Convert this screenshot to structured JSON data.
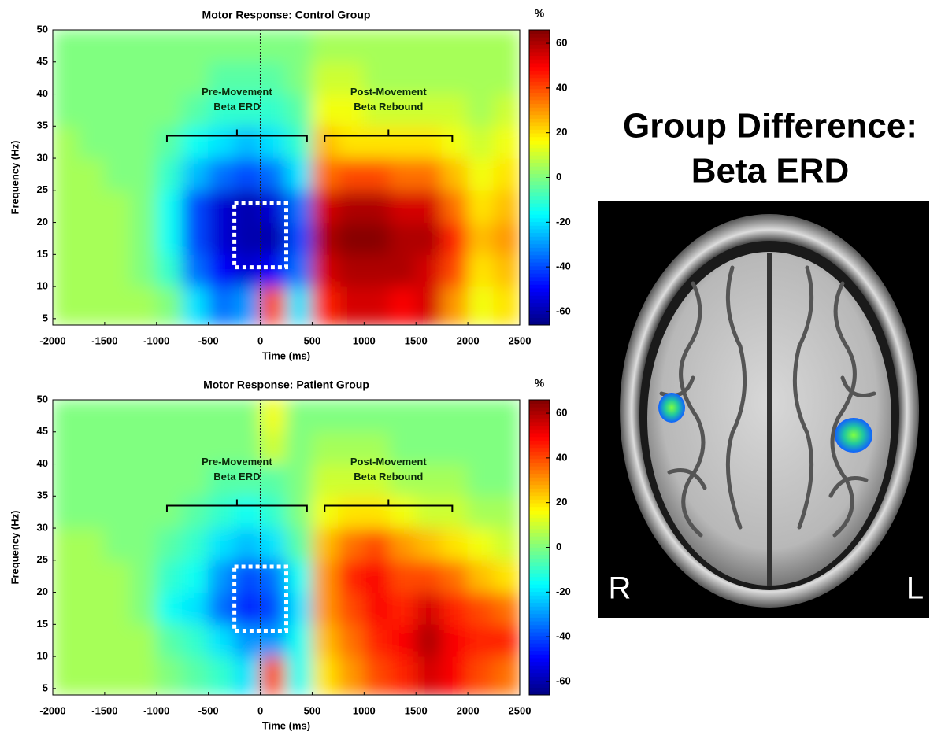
{
  "chart_data": [
    {
      "type": "heatmap",
      "title": "Motor Response: Control Group",
      "x_label": "Time (ms)",
      "y_label": "Frequency (Hz)",
      "colormap": "jet",
      "colorbar_label": "%",
      "clim": [
        -66,
        66
      ],
      "colorbar_ticks": [
        -60,
        -40,
        -20,
        0,
        20,
        40,
        60
      ],
      "xlim": [
        -2000,
        2500
      ],
      "xticks": [
        -2000,
        -1500,
        -1000,
        -500,
        0,
        500,
        1000,
        1500,
        2000,
        2500
      ],
      "ylim": [
        4,
        50
      ],
      "yticks": [
        5,
        10,
        15,
        20,
        25,
        30,
        35,
        40,
        45,
        50
      ],
      "x": [
        -2000,
        -1750,
        -1500,
        -1250,
        -1000,
        -750,
        -500,
        -250,
        0,
        250,
        500,
        750,
        1000,
        1250,
        1500,
        1750,
        2000,
        2250,
        2500
      ],
      "y": [
        4,
        10,
        15,
        20,
        25,
        30,
        35,
        40,
        45,
        50
      ],
      "z": [
        [
          5,
          5,
          5,
          5,
          0,
          -20,
          -35,
          -30,
          40,
          -20,
          45,
          55,
          55,
          50,
          55,
          30,
          15,
          20
        ],
        [
          5,
          5,
          5,
          0,
          -10,
          -35,
          -50,
          -55,
          -50,
          -35,
          55,
          60,
          60,
          60,
          55,
          40,
          20,
          25
        ],
        [
          5,
          5,
          5,
          0,
          -15,
          -40,
          -55,
          -60,
          -60,
          -40,
          60,
          65,
          65,
          60,
          60,
          45,
          25,
          30
        ],
        [
          5,
          5,
          5,
          0,
          -15,
          -40,
          -55,
          -60,
          -55,
          -35,
          55,
          60,
          60,
          55,
          55,
          35,
          20,
          25
        ],
        [
          5,
          5,
          0,
          0,
          -10,
          -25,
          -35,
          -40,
          -35,
          -20,
          35,
          40,
          40,
          35,
          35,
          25,
          15,
          20
        ],
        [
          5,
          0,
          0,
          0,
          -5,
          -15,
          -20,
          -25,
          -20,
          -10,
          25,
          20,
          20,
          20,
          20,
          15,
          10,
          15
        ],
        [
          0,
          0,
          0,
          0,
          0,
          -5,
          -10,
          -10,
          -10,
          -5,
          15,
          15,
          10,
          10,
          10,
          10,
          5,
          10
        ],
        [
          0,
          0,
          0,
          0,
          0,
          0,
          -5,
          -5,
          -5,
          0,
          10,
          10,
          5,
          5,
          5,
          5,
          5,
          5
        ],
        [
          0,
          0,
          0,
          0,
          0,
          0,
          0,
          0,
          0,
          0,
          5,
          5,
          5,
          5,
          5,
          5,
          5,
          5
        ]
      ],
      "vline": 0,
      "roi": {
        "x": [
          -250,
          250
        ],
        "y": [
          13,
          23
        ]
      },
      "annotations": [
        {
          "text": [
            "Pre-Movement",
            "Beta ERD"
          ],
          "x": [
            -900,
            450
          ],
          "y": 33.5
        },
        {
          "text": [
            "Post-Movement",
            "Beta Rebound"
          ],
          "x": [
            620,
            1850
          ],
          "y": 33.5
        }
      ]
    },
    {
      "type": "heatmap",
      "title": "Motor Response: Patient Group",
      "x_label": "Time (ms)",
      "y_label": "Frequency (Hz)",
      "colormap": "jet",
      "colorbar_label": "%",
      "clim": [
        -66,
        66
      ],
      "colorbar_ticks": [
        -60,
        -40,
        -20,
        0,
        20,
        40,
        60
      ],
      "xlim": [
        -2000,
        2500
      ],
      "xticks": [
        -2000,
        -1500,
        -1000,
        -500,
        0,
        500,
        1000,
        1500,
        2000,
        2500
      ],
      "ylim": [
        4,
        50
      ],
      "yticks": [
        5,
        10,
        15,
        20,
        25,
        30,
        35,
        40,
        45,
        50
      ],
      "x": [
        -2000,
        -1750,
        -1500,
        -1250,
        -1000,
        -750,
        -500,
        -250,
        0,
        250,
        500,
        750,
        1000,
        1250,
        1500,
        1750,
        2000,
        2250,
        2500
      ],
      "y": [
        4,
        10,
        15,
        20,
        25,
        30,
        35,
        40,
        45,
        50
      ],
      "z": [
        [
          5,
          5,
          5,
          5,
          0,
          -5,
          -10,
          -20,
          40,
          -15,
          20,
          30,
          40,
          45,
          55,
          50,
          40,
          35
        ],
        [
          5,
          5,
          5,
          5,
          -5,
          -10,
          -20,
          -30,
          -30,
          -15,
          25,
          35,
          45,
          50,
          60,
          50,
          45,
          45
        ],
        [
          5,
          5,
          5,
          0,
          -15,
          -20,
          -35,
          -45,
          -40,
          -20,
          30,
          40,
          50,
          45,
          55,
          45,
          40,
          35
        ],
        [
          5,
          5,
          5,
          0,
          -10,
          -15,
          -30,
          -40,
          -35,
          -15,
          30,
          45,
          50,
          40,
          40,
          35,
          25,
          20
        ],
        [
          5,
          5,
          0,
          0,
          -5,
          -10,
          -20,
          -25,
          -20,
          -5,
          25,
          35,
          40,
          30,
          25,
          20,
          15,
          10
        ],
        [
          0,
          0,
          0,
          0,
          0,
          -5,
          -10,
          -15,
          -10,
          0,
          15,
          20,
          20,
          15,
          10,
          10,
          5,
          5
        ],
        [
          0,
          0,
          0,
          0,
          0,
          0,
          -5,
          -5,
          -5,
          0,
          10,
          10,
          10,
          5,
          5,
          5,
          0,
          0
        ],
        [
          0,
          0,
          0,
          0,
          0,
          0,
          0,
          0,
          10,
          0,
          5,
          5,
          5,
          0,
          0,
          0,
          0,
          0
        ],
        [
          0,
          0,
          0,
          0,
          0,
          0,
          0,
          0,
          15,
          0,
          0,
          0,
          0,
          0,
          0,
          0,
          0,
          0
        ]
      ],
      "vline": 0,
      "roi": {
        "x": [
          -250,
          250
        ],
        "y": [
          14,
          24
        ]
      },
      "annotations": [
        {
          "text": [
            "Pre-Movement",
            "Beta ERD"
          ],
          "x": [
            -900,
            450
          ],
          "y": 33.5
        },
        {
          "text": [
            "Post-Movement",
            "Beta Rebound"
          ],
          "x": [
            620,
            1850
          ],
          "y": 33.5
        }
      ]
    }
  ],
  "panel": {
    "title": [
      "Group Difference:",
      "Beta ERD"
    ],
    "left_label": "R",
    "right_label": "L"
  }
}
